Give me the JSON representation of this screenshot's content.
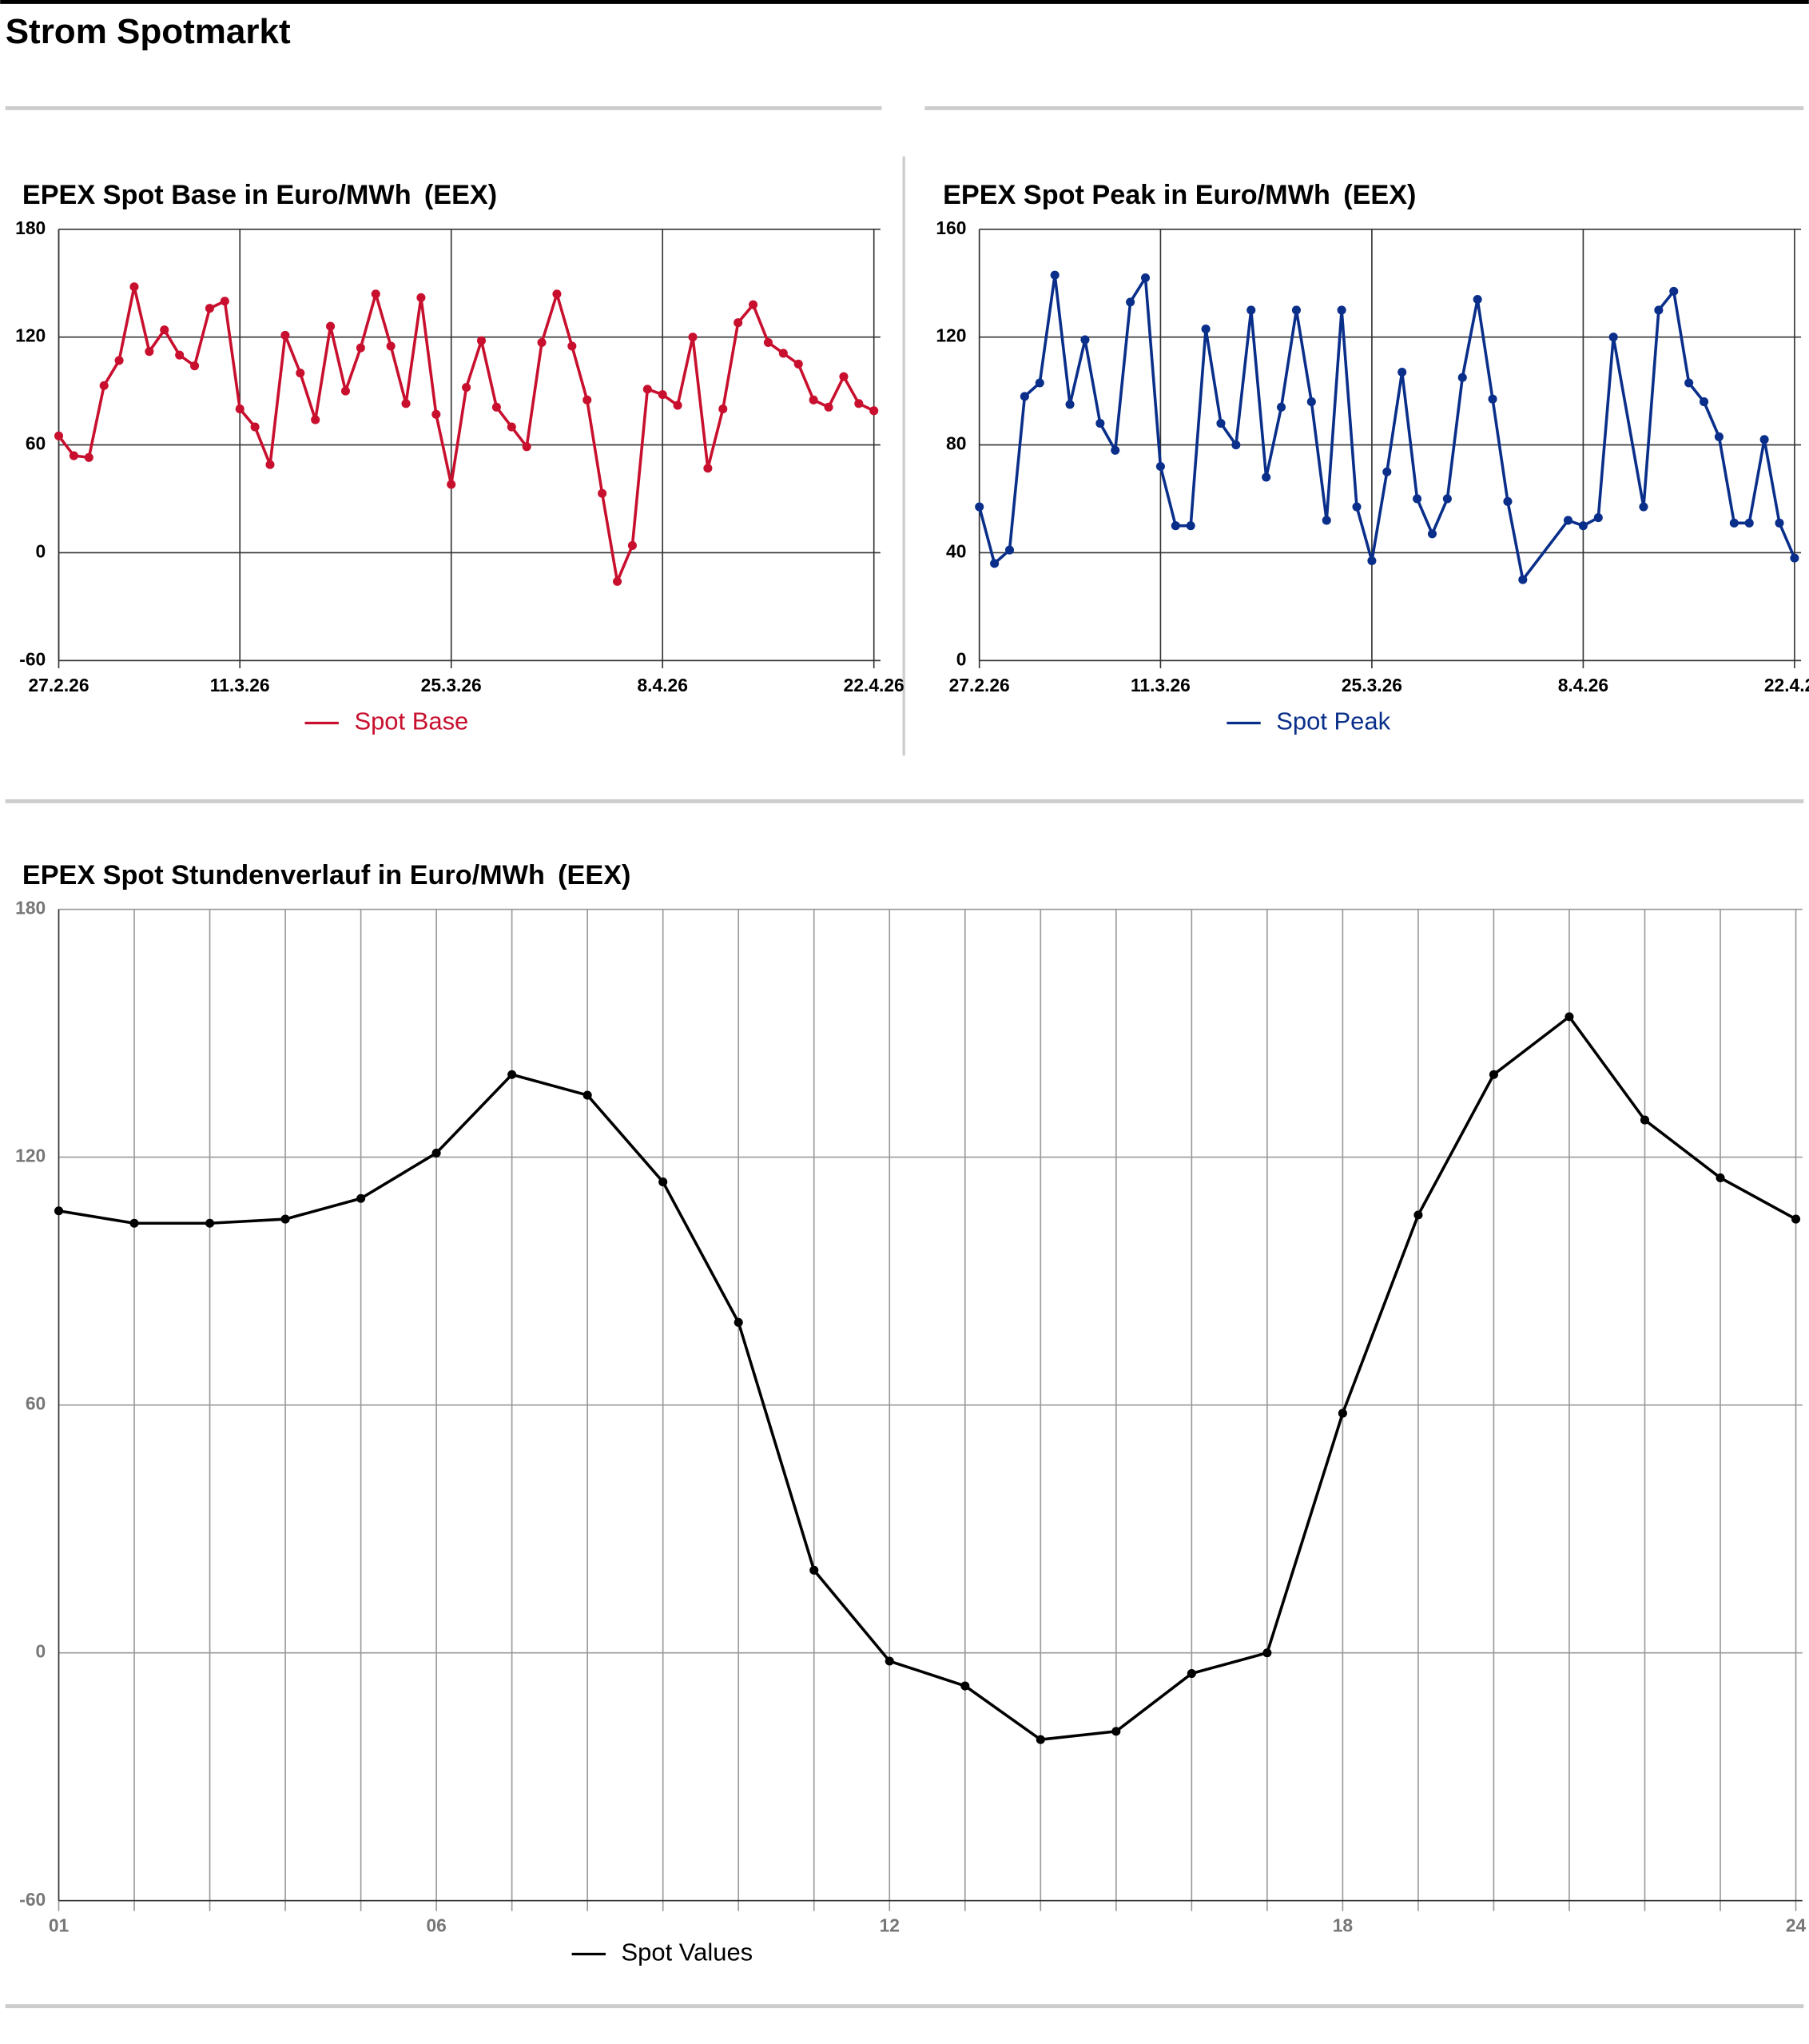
{
  "title": "Strom Spotmarkt",
  "chart_data": [
    {
      "type": "line",
      "title": "EPEX Spot Base in Euro/MWh",
      "source": "(EEX)",
      "x": [
        "27.2.26",
        "28.2.26",
        "1.3.26",
        "2.3.26",
        "3.3.26",
        "4.3.26",
        "5.3.26",
        "6.3.26",
        "7.3.26",
        "8.3.26",
        "9.3.26",
        "10.3.26",
        "11.3.26",
        "12.3.26",
        "13.3.26",
        "14.3.26",
        "15.3.26",
        "16.3.26",
        "17.3.26",
        "18.3.26",
        "19.3.26",
        "20.3.26",
        "21.3.26",
        "22.3.26",
        "23.3.26",
        "24.3.26",
        "25.3.26",
        "26.3.26",
        "27.3.26",
        "28.3.26",
        "29.3.26",
        "30.3.26",
        "31.3.26",
        "1.4.26",
        "2.4.26",
        "3.4.26",
        "4.4.26",
        "5.4.26",
        "6.4.26",
        "7.4.26",
        "8.4.26",
        "9.4.26",
        "10.4.26",
        "11.4.26",
        "12.4.26",
        "13.4.26",
        "14.4.26",
        "15.4.26",
        "16.4.26",
        "17.4.26",
        "18.4.26",
        "19.4.26",
        "20.4.26",
        "21.4.26",
        "22.4.26"
      ],
      "series": [
        {
          "name": "Spot Base",
          "color": "#c8102e",
          "values": [
            65,
            54,
            53,
            93,
            107,
            148,
            112,
            124,
            110,
            104,
            136,
            140,
            80,
            70,
            49,
            121,
            100,
            74,
            126,
            90,
            114,
            144,
            115,
            83,
            142,
            77,
            38,
            92,
            118,
            81,
            70,
            59,
            117,
            144,
            115,
            85,
            33,
            -16,
            4,
            91,
            88,
            82,
            120,
            47,
            80,
            128,
            138,
            117,
            111,
            105,
            85,
            81,
            98,
            83,
            79
          ]
        }
      ],
      "xlim": [
        "27.2.26",
        "22.4.26"
      ],
      "xticks": [
        "27.2.26",
        "11.3.26",
        "25.3.26",
        "8.4.26",
        "22.4.26"
      ],
      "ylim": [
        -60,
        180
      ],
      "yticks": [
        -60,
        0,
        60,
        120,
        180
      ],
      "grid": true
    },
    {
      "type": "line",
      "title": "EPEX Spot Peak in Euro/MWh",
      "source": "(EEX)",
      "x": [
        "27.2.26",
        "28.2.26",
        "1.3.26",
        "2.3.26",
        "3.3.26",
        "4.3.26",
        "5.3.26",
        "6.3.26",
        "7.3.26",
        "8.3.26",
        "9.3.26",
        "10.3.26",
        "11.3.26",
        "12.3.26",
        "13.3.26",
        "14.3.26",
        "15.3.26",
        "16.3.26",
        "17.3.26",
        "18.3.26",
        "19.3.26",
        "20.3.26",
        "21.3.26",
        "22.3.26",
        "23.3.26",
        "24.3.26",
        "25.3.26",
        "26.3.26",
        "27.3.26",
        "28.3.26",
        "29.3.26",
        "30.3.26",
        "31.3.26",
        "1.4.26",
        "2.4.26",
        "3.4.26",
        "4.4.26",
        "7.4.26",
        "8.4.26",
        "9.4.26",
        "10.4.26",
        "12.4.26",
        "13.4.26",
        "14.4.26",
        "15.4.26",
        "16.4.26",
        "17.4.26",
        "18.4.26",
        "19.4.26",
        "20.4.26",
        "21.4.26",
        "22.4.26"
      ],
      "series": [
        {
          "name": "Spot Peak",
          "color": "#0a2f8a",
          "values": [
            57,
            36,
            41,
            98,
            103,
            143,
            95,
            119,
            88,
            78,
            133,
            142,
            72,
            50,
            50,
            123,
            88,
            80,
            130,
            68,
            94,
            130,
            96,
            52,
            130,
            57,
            37,
            70,
            107,
            60,
            47,
            60,
            105,
            134,
            97,
            59,
            30,
            52,
            50,
            53,
            120,
            57,
            130,
            137,
            103,
            96,
            83,
            51,
            51,
            82,
            51,
            38
          ]
        }
      ],
      "xlim": [
        "27.2.26",
        "22.4.26"
      ],
      "xticks": [
        "27.2.26",
        "11.3.26",
        "25.3.26",
        "8.4.26",
        "22.4.26"
      ],
      "ylim": [
        0,
        160
      ],
      "yticks": [
        0,
        40,
        80,
        120,
        160
      ],
      "grid": true
    },
    {
      "type": "line",
      "title": "EPEX Spot Stundenverlauf in Euro/MWh",
      "source": "(EEX)",
      "x": [
        1,
        2,
        3,
        4,
        5,
        6,
        7,
        8,
        9,
        10,
        11,
        12,
        13,
        14,
        15,
        16,
        17,
        18,
        19,
        20,
        21,
        22,
        23,
        24
      ],
      "series": [
        {
          "name": "Spot Values",
          "color": "#000000",
          "values": [
            107,
            104,
            104,
            105,
            110,
            121,
            140,
            135,
            114,
            80,
            20,
            -2,
            -8,
            -21,
            -19,
            -5,
            0,
            58,
            106,
            140,
            154,
            129,
            115,
            105
          ]
        }
      ],
      "xlim": [
        1,
        24
      ],
      "xticks": [
        {
          "value": 1,
          "label": "01"
        },
        {
          "value": 6,
          "label": "06"
        },
        {
          "value": 12,
          "label": "12"
        },
        {
          "value": 18,
          "label": "18"
        },
        {
          "value": 24,
          "label": "24"
        }
      ],
      "ylim": [
        -60,
        180
      ],
      "yticks": [
        -60,
        0,
        60,
        120,
        180
      ],
      "grid": true
    }
  ]
}
